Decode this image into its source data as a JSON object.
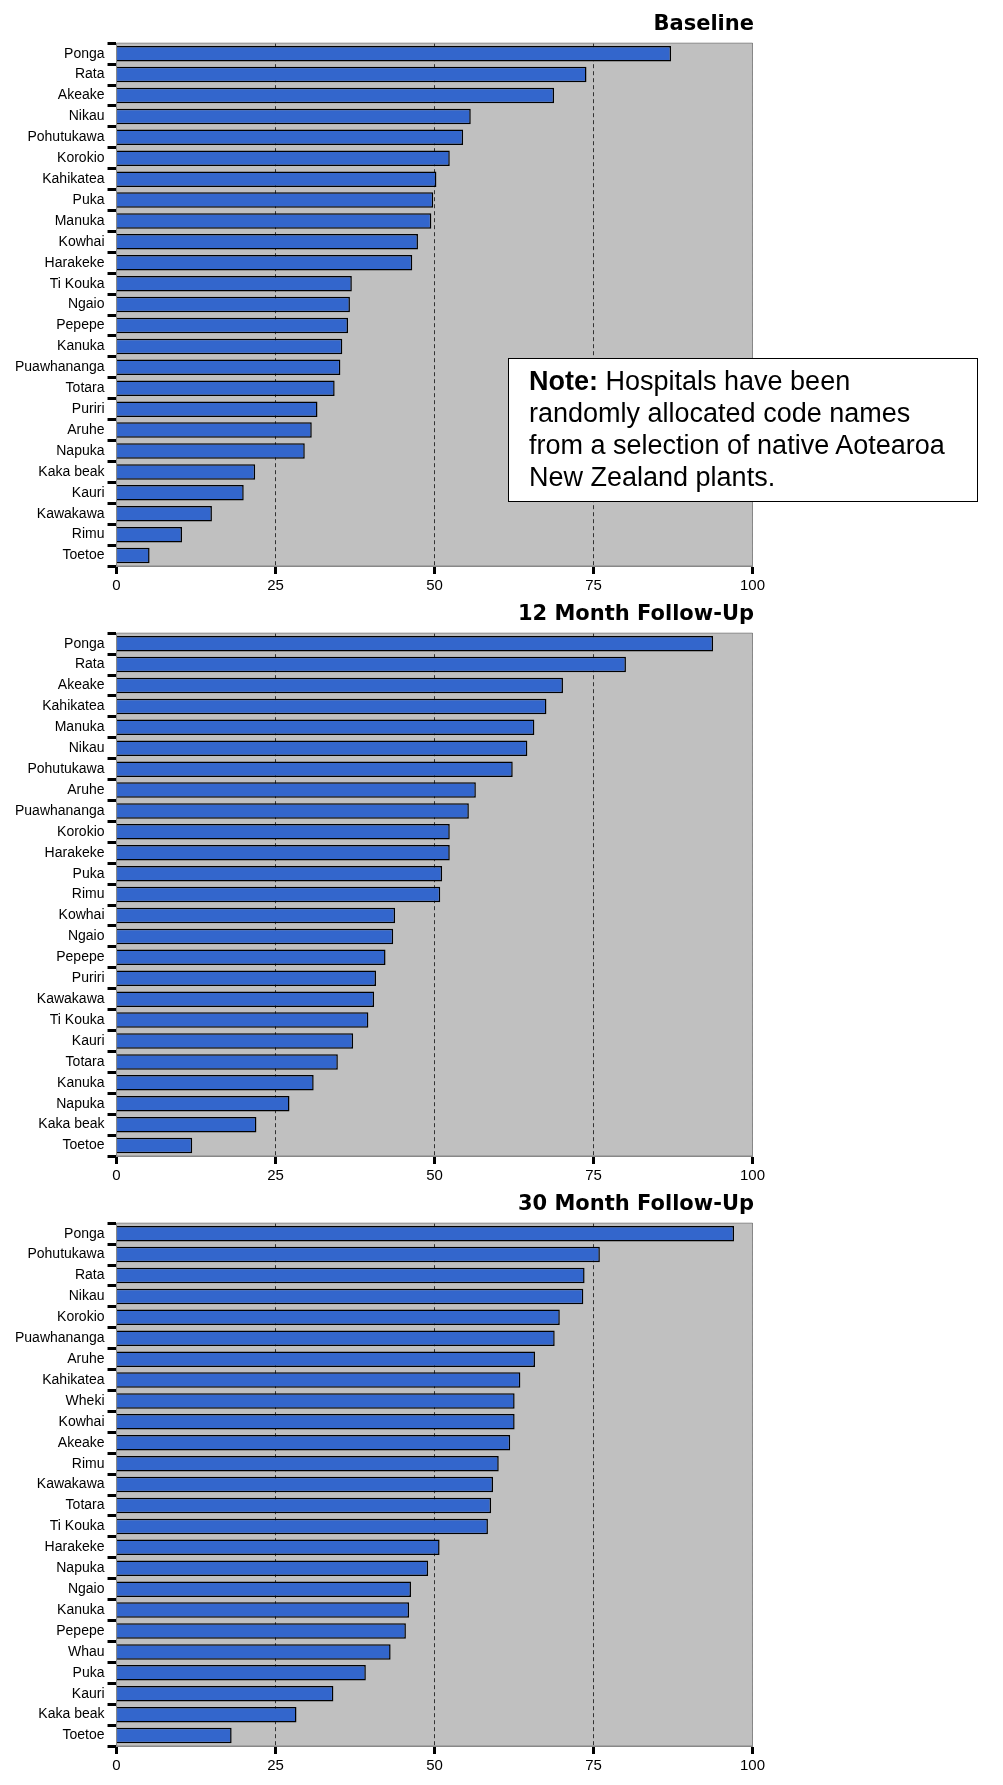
{
  "chart_data": [
    {
      "type": "bar",
      "orientation": "horizontal",
      "title": "Baseline",
      "color": "#3366cc",
      "xlim": [
        0,
        100
      ],
      "xticks": [
        0,
        25,
        50,
        75,
        100
      ],
      "grid": "x",
      "legend": false,
      "categories": [
        "Ponga",
        "Rata",
        "Akeake",
        "Nikau",
        "Pohutukawa",
        "Korokio",
        "Kahikatea",
        "Puka",
        "Manuka",
        "Kowhai",
        "Harakeke",
        "Ti Kouka",
        "Ngaio",
        "Pepepe",
        "Kanuka",
        "Puawhananga",
        "Totara",
        "Puriri",
        "Aruhe",
        "Napuka",
        "Kaka beak",
        "Kauri",
        "Kawakawa",
        "Rimu",
        "Toetoe"
      ],
      "values": [
        87.2,
        73.9,
        68.8,
        55.7,
        54.5,
        52.4,
        50.3,
        49.8,
        49.5,
        47.4,
        46.5,
        37,
        36.7,
        36.4,
        35.5,
        35.2,
        34.3,
        31.6,
        30.7,
        29.6,
        21.8,
        20,
        15,
        10.3,
        5.2
      ],
      "annotations": [
        "Note: Hospitals have been randomly allocated code names from a selection of native Aotearoa New Zealand plants."
      ]
    },
    {
      "type": "bar",
      "orientation": "horizontal",
      "title": "12 Month Follow-Up",
      "color": "#3366cc",
      "xlim": [
        0,
        100
      ],
      "xticks": [
        0,
        25,
        50,
        75,
        100
      ],
      "grid": "x",
      "legend": false,
      "categories": [
        "Ponga",
        "Rata",
        "Akeake",
        "Kahikatea",
        "Manuka",
        "Nikau",
        "Pohutukawa",
        "Aruhe",
        "Puawhananga",
        "Korokio",
        "Harakeke",
        "Puka",
        "Rimu",
        "Kowhai",
        "Ngaio",
        "Pepepe",
        "Puriri",
        "Kawakawa",
        "Ti Kouka",
        "Kauri",
        "Totara",
        "Kanuka",
        "Napuka",
        "Kaka beak",
        "Toetoe"
      ],
      "values": [
        93.8,
        80.1,
        70.2,
        67.6,
        65.7,
        64.6,
        62.3,
        56.5,
        55.4,
        52.4,
        52.4,
        51.2,
        50.9,
        43.8,
        43.5,
        42.3,
        40.8,
        40.5,
        39.6,
        37.2,
        34.8,
        31,
        27.2,
        22,
        11.9
      ]
    },
    {
      "type": "bar",
      "orientation": "horizontal",
      "title": "30 Month Follow-Up",
      "color": "#3366cc",
      "xlim": [
        0,
        100
      ],
      "xticks": [
        0,
        25,
        50,
        75,
        100
      ],
      "grid": "x",
      "legend": false,
      "categories": [
        "Ponga",
        "Pohutukawa",
        "Rata",
        "Nikau",
        "Korokio",
        "Puawhananga",
        "Aruhe",
        "Kahikatea",
        "Wheki",
        "Kowhai",
        "Akeake",
        "Rimu",
        "Kawakawa",
        "Totara",
        "Ti Kouka",
        "Harakeke",
        "Napuka",
        "Ngaio",
        "Kanuka",
        "Pepepe",
        "Whau",
        "Puka",
        "Kauri",
        "Kaka beak",
        "Toetoe"
      ],
      "values": [
        97.1,
        76,
        73.6,
        73.4,
        69.7,
        68.9,
        65.8,
        63.5,
        62.6,
        62.6,
        61.9,
        60.1,
        59.2,
        58.9,
        58.4,
        50.8,
        49,
        46.3,
        46,
        45.5,
        43.1,
        39.2,
        34.1,
        28.3,
        18.1
      ]
    }
  ]
}
